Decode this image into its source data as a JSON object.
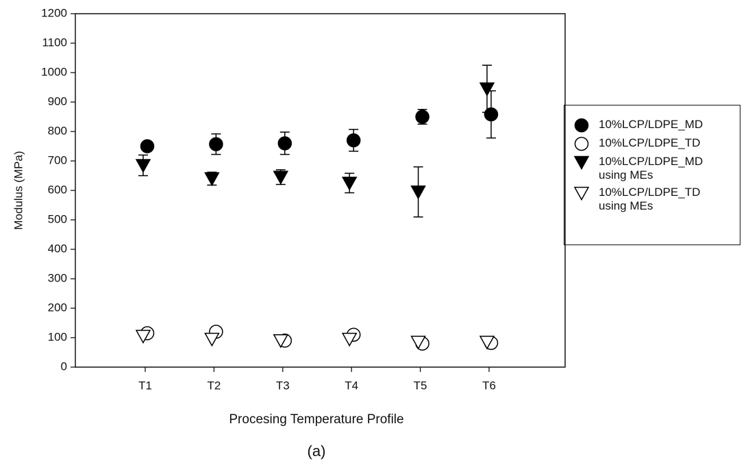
{
  "chart_data": {
    "type": "scatter",
    "x_label": "Procesing Temperature Profile",
    "y_label": "Modulus (MPa)",
    "caption": "(a)",
    "categories": [
      "T1",
      "T2",
      "T3",
      "T4",
      "T5",
      "T6"
    ],
    "ylim": [
      0,
      1200
    ],
    "yticks": [
      0,
      100,
      200,
      300,
      400,
      500,
      600,
      700,
      800,
      900,
      1000,
      1100,
      1200
    ],
    "series": [
      {
        "name": "10%LCP/LDPE_MD",
        "color": "#000000",
        "marker": "circle",
        "filled": true,
        "values": [
          750,
          757,
          760,
          770,
          850,
          858
        ],
        "errors": [
          10,
          35,
          38,
          37,
          25,
          80
        ]
      },
      {
        "name": "10%LCP/LDPE_TD",
        "color": "#000000",
        "marker": "circle",
        "filled": false,
        "values": [
          115,
          120,
          90,
          110,
          80,
          82
        ]
      },
      {
        "name": "10%LCP/LDPE_MD using MEs",
        "color": "#000000",
        "marker": "triangle-down",
        "filled": true,
        "values": [
          685,
          640,
          645,
          625,
          595,
          945
        ],
        "errors": [
          35,
          22,
          25,
          33,
          85,
          80
        ]
      },
      {
        "name": "10%LCP/LDPE_TD using MEs",
        "color": "#000000",
        "marker": "triangle-down",
        "filled": false,
        "values": [
          105,
          95,
          90,
          95,
          85,
          85
        ]
      }
    ]
  }
}
